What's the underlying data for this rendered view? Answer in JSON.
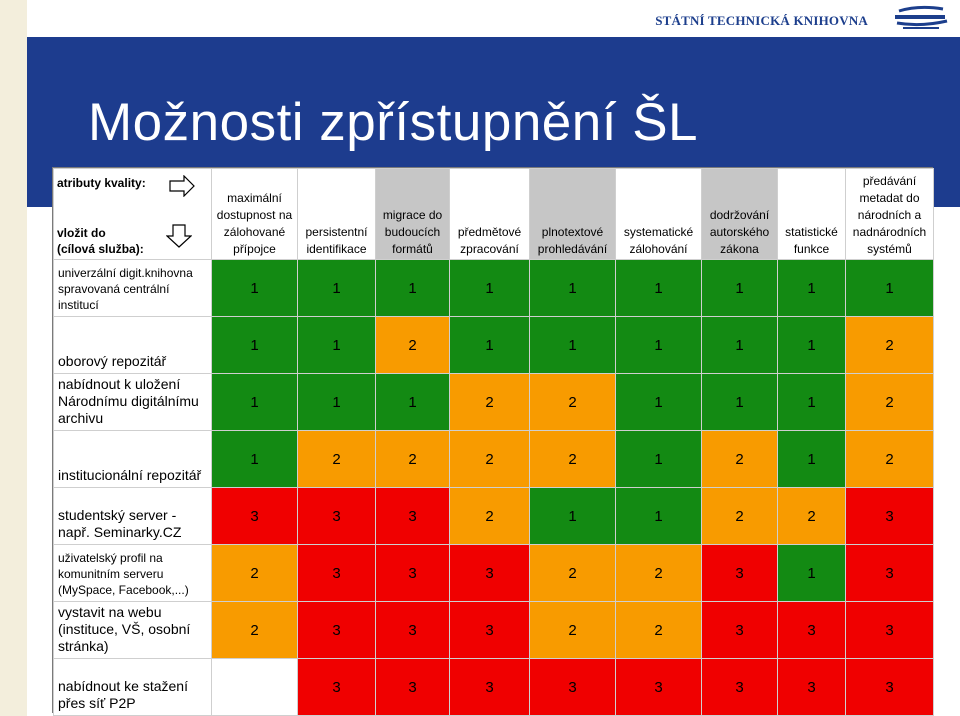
{
  "header": {
    "organization": "STÁTNÍ TECHNICKÁ KNIHOVNA",
    "logo": "stk-logo"
  },
  "slide": {
    "title": "Možnosti zpřístupnění ŠL"
  },
  "table": {
    "corner": {
      "attributes_label": "atributy kvality:",
      "insert_label_line1": "vložit do",
      "insert_label_line2": "(cílová služba):"
    },
    "columns": [
      {
        "label": "maximální dostupnost na zálohované přípojce",
        "shade": "white"
      },
      {
        "label": "persistentní identifikace",
        "shade": "white"
      },
      {
        "label": "migrace do budoucích formátů",
        "shade": "gray"
      },
      {
        "label": "předmětové zpracování",
        "shade": "white"
      },
      {
        "label": "plnotextové prohledávání",
        "shade": "gray"
      },
      {
        "label": "systematické zálohování",
        "shade": "white"
      },
      {
        "label": "dodržování autorského zákona",
        "shade": "gray"
      },
      {
        "label": "statistické funkce",
        "shade": "white"
      },
      {
        "label": "předávání metadat do národních a nadnárodních systémů",
        "shade": "white"
      }
    ],
    "rows": [
      {
        "label": "univerzální digit.knihovna spravovaná centrální institucí",
        "values": [
          "1",
          "1",
          "1",
          "1",
          "1",
          "1",
          "1",
          "1",
          "1"
        ],
        "colors": [
          "g",
          "g",
          "g",
          "g",
          "g",
          "g",
          "g",
          "g",
          "g"
        ]
      },
      {
        "label": "oborový repozitář",
        "values": [
          "1",
          "1",
          "2",
          "1",
          "1",
          "1",
          "1",
          "1",
          "2"
        ],
        "colors": [
          "g",
          "g",
          "o",
          "g",
          "g",
          "g",
          "g",
          "g",
          "o"
        ]
      },
      {
        "label": "nabídnout k uložení Národnímu digitálnímu archivu",
        "values": [
          "1",
          "1",
          "1",
          "2",
          "2",
          "1",
          "1",
          "1",
          "2"
        ],
        "colors": [
          "g",
          "g",
          "g",
          "o",
          "o",
          "g",
          "g",
          "g",
          "o"
        ]
      },
      {
        "label": "institucionální repozitář",
        "values": [
          "1",
          "2",
          "2",
          "2",
          "2",
          "1",
          "2",
          "1",
          "2"
        ],
        "colors": [
          "g",
          "o",
          "o",
          "o",
          "o",
          "g",
          "o",
          "g",
          "o"
        ]
      },
      {
        "label": "studentský server - např. Seminarky.CZ",
        "values": [
          "3",
          "3",
          "3",
          "2",
          "1",
          "1",
          "2",
          "2",
          "3"
        ],
        "colors": [
          "r",
          "r",
          "r",
          "o",
          "g",
          "g",
          "o",
          "o",
          "r"
        ]
      },
      {
        "label": "uživatelský profil na komunitním serveru (MySpace, Facebook,...)",
        "values": [
          "2",
          "3",
          "3",
          "3",
          "2",
          "2",
          "3",
          "1",
          "3"
        ],
        "colors": [
          "o",
          "r",
          "r",
          "r",
          "o",
          "o",
          "r",
          "g",
          "r"
        ]
      },
      {
        "label": "vystavit na webu (instituce, VŠ, osobní stránka)",
        "values": [
          "2",
          "3",
          "3",
          "3",
          "2",
          "2",
          "3",
          "3",
          "3"
        ],
        "colors": [
          "o",
          "r",
          "r",
          "r",
          "o",
          "o",
          "r",
          "r",
          "r"
        ]
      },
      {
        "label": "nabídnout ke stažení přes síť P2P",
        "values": [
          "",
          "3",
          "3",
          "3",
          "3",
          "3",
          "3",
          "3",
          "3"
        ],
        "colors": [
          "w",
          "r",
          "r",
          "r",
          "r",
          "r",
          "r",
          "r",
          "r"
        ]
      }
    ]
  },
  "colors": {
    "title_band": "#1d3c8e",
    "green": "#138a13",
    "orange": "#f89b00",
    "red": "#f00000",
    "header_gray": "#c6c6c6"
  }
}
